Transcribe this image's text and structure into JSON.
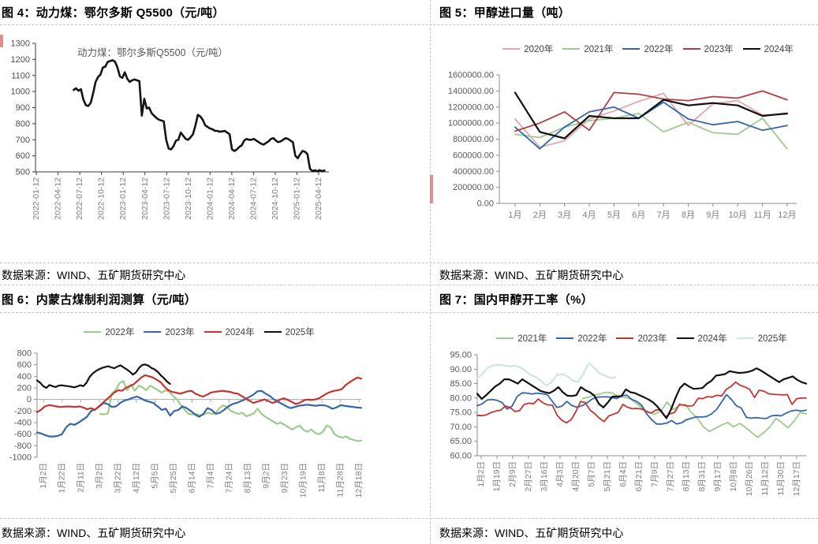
{
  "page": {
    "figure4_title": "图 4：动力煤：鄂尔多斯 Q5500（元/吨）",
    "figure5_title": "图 5：甲醇进口量（吨）",
    "figure6_title": "图 6：内蒙古煤制利润测算（元/吨）",
    "figure7_title": "图 7：国内甲醇开工率（%）",
    "source_text": "数据来源：WIND、五矿期货研究中心"
  },
  "colors": {
    "pink": "#E4A7AE",
    "green": "#9CCB8B",
    "blue": "#3566A9",
    "dark_red": "#B33E42",
    "bright_red": "#C53431",
    "black": "#111111",
    "pale_teal": "#CBE8DF",
    "axis_dark": "#3a3a3a",
    "axis_gray": "#8c8c8c",
    "tick_label_gray": "#7f7f7f"
  },
  "chart_data": [
    {
      "id": "fig4",
      "type": "line",
      "title": "图 4：动力煤：鄂尔多斯 Q5500（元/吨）",
      "inner_label": "动力煤：鄂尔多斯Q5500（元/吨）",
      "xlabel": "",
      "ylabel": "",
      "ylim": [
        500,
        1300
      ],
      "ytick_step": 100,
      "ytick_labels": [
        "1300",
        "1200",
        "1100",
        "1000",
        "900",
        "800",
        "700",
        "600",
        "500"
      ],
      "xtick_labels": [
        "2022-01-12",
        "2022-04-12",
        "2022-07-12",
        "2022-10-12",
        "2023-01-12",
        "2023-04-12",
        "2023-07-12",
        "2023-10-12",
        "2024-01-12",
        "2024-04-12",
        "2024-07-12",
        "2024-10-12",
        "2025-01-12",
        "2025-04-12"
      ],
      "legend": false,
      "series": [
        {
          "name": "动力煤：鄂尔多斯Q5500（元/吨）",
          "color": "#141414",
          "width": 2.6,
          "xstart": 0.13,
          "xend": 0.985,
          "values": [
            1010,
            1020,
            1005,
            1015,
            950,
            915,
            910,
            930,
            990,
            1060,
            1090,
            1105,
            1150,
            1155,
            1185,
            1190,
            1195,
            1185,
            1150,
            1095,
            1085,
            1120,
            1080,
            1060,
            1070,
            1075,
            1070,
            1065,
            850,
            955,
            895,
            900,
            865,
            850,
            835,
            825,
            820,
            815,
            700,
            645,
            640,
            660,
            695,
            700,
            745,
            725,
            705,
            700,
            715,
            735,
            790,
            855,
            845,
            825,
            790,
            780,
            770,
            765,
            755,
            755,
            750,
            752,
            755,
            745,
            735,
            640,
            630,
            640,
            655,
            665,
            695,
            705,
            700,
            700,
            705,
            695,
            685,
            675,
            670,
            680,
            690,
            705,
            710,
            695,
            685,
            690,
            700,
            710,
            705,
            695,
            685,
            600,
            585,
            610,
            630,
            625,
            610,
            520,
            505,
            510,
            504,
            511,
            505,
            509
          ]
        }
      ]
    },
    {
      "id": "fig5",
      "type": "line",
      "title": "图 5：甲醇进口量（吨）",
      "xlabel": "",
      "ylabel": "",
      "ylim": [
        0,
        1600000
      ],
      "ytick_step": 200000,
      "ytick_labels": [
        "1600000.00",
        "1400000.00",
        "1200000.00",
        "1000000.00",
        "800000.00",
        "600000.00",
        "400000.00",
        "200000.00",
        "0.00"
      ],
      "xtick_labels": [
        "1月",
        "2月",
        "3月",
        "4月",
        "5月",
        "6月",
        "7月",
        "8月",
        "9月",
        "10月",
        "11月",
        "12月"
      ],
      "legend": true,
      "legend_position": "top",
      "series": [
        {
          "name": "2020年",
          "color": "#E4A7AE",
          "xstart": 0.053,
          "xend": 0.968,
          "values": [
            1050000,
            700000,
            780000,
            1050000,
            1150000,
            1270000,
            1370000,
            970000,
            1240000,
            1280000,
            1100000,
            1110000
          ]
        },
        {
          "name": "2021年",
          "color": "#9CCB8B",
          "xstart": 0.053,
          "xend": 0.968,
          "values": [
            860000,
            820000,
            950000,
            1030000,
            1060000,
            1120000,
            890000,
            1010000,
            880000,
            860000,
            1060000,
            680000
          ]
        },
        {
          "name": "2022年",
          "color": "#3566A9",
          "xstart": 0.053,
          "xend": 0.968,
          "values": [
            950000,
            680000,
            950000,
            1140000,
            1200000,
            1060000,
            1260000,
            1050000,
            980000,
            1020000,
            910000,
            970000
          ]
        },
        {
          "name": "2023年",
          "color": "#B33E42",
          "xstart": 0.053,
          "xend": 0.968,
          "values": [
            900000,
            1000000,
            1140000,
            910000,
            1380000,
            1360000,
            1300000,
            1280000,
            1330000,
            1310000,
            1400000,
            1290000
          ]
        },
        {
          "name": "2024年",
          "color": "#111111",
          "width": 2.2,
          "xstart": 0.053,
          "xend": 0.968,
          "values": [
            1380000,
            890000,
            810000,
            1090000,
            1060000,
            1060000,
            1290000,
            1220000,
            1250000,
            1220000,
            1090000,
            1120000
          ]
        }
      ]
    },
    {
      "id": "fig6",
      "type": "line",
      "title": "图 6：内蒙古煤制利润测算（元/吨）",
      "xlabel": "",
      "ylabel": "",
      "ylim": [
        -1000,
        800
      ],
      "ytick_step": 200,
      "ytick_labels": [
        "800",
        "600",
        "400",
        "200",
        "0",
        "-200",
        "-400",
        "-600",
        "-800",
        "-1000"
      ],
      "xtick_labels": [
        "1月2日",
        "1月22日",
        "2月11日",
        "3月2日",
        "3月22日",
        "4月12日",
        "5月5日",
        "5月25日",
        "6月14日",
        "7月4日",
        "7月24日",
        "8月13日",
        "9月2日",
        "9月23日",
        "10月19日",
        "11月8日",
        "11月28日",
        "12月18日"
      ],
      "xaxis_at": 0,
      "legend": true,
      "legend_position": "top",
      "series": [
        {
          "name": "2022年",
          "color": "#9CCB8B",
          "xstart": 0.195,
          "xend": 1,
          "values": [
            -250,
            -260,
            -240,
            100,
            160,
            280,
            320,
            160,
            260,
            150,
            240,
            210,
            160,
            240,
            200,
            160,
            120,
            160,
            130,
            60,
            0,
            -100,
            -180,
            -250,
            -260,
            -250,
            -280,
            -260,
            -230,
            -250,
            -240,
            -150,
            -100,
            -130,
            -200,
            -230,
            -250,
            -230,
            -290,
            -270,
            -240,
            -160,
            -250,
            -300,
            -340,
            -380,
            -420,
            -400,
            -440,
            -480,
            -520,
            -480,
            -450,
            -530,
            -560,
            -520,
            -580,
            -600,
            -560,
            -450,
            -480,
            -600,
            -640,
            -660,
            -640,
            -680,
            -700,
            -720,
            -710
          ]
        },
        {
          "name": "2023年",
          "color": "#3566A9",
          "xstart": 0,
          "xend": 1,
          "values": [
            -570,
            -590,
            -620,
            -640,
            -640,
            -630,
            -600,
            -480,
            -420,
            -440,
            -400,
            -350,
            -300,
            -200,
            -170,
            -120,
            -60,
            -80,
            -130,
            -120,
            -60,
            -20,
            0,
            30,
            50,
            20,
            -20,
            -40,
            -60,
            -120,
            -180,
            -160,
            -280,
            -200,
            -180,
            -120,
            -150,
            -200,
            -260,
            -300,
            -250,
            -150,
            -180,
            -250,
            -230,
            -180,
            -120,
            -80,
            -60,
            -30,
            0,
            40,
            80,
            140,
            150,
            100,
            60,
            0,
            -40,
            -80,
            -120,
            -150,
            -130,
            -110,
            -100,
            -90,
            -100,
            -110,
            -100,
            -100,
            -120,
            -160,
            -140,
            -100,
            -110,
            -120,
            -130,
            -140,
            -145
          ]
        },
        {
          "name": "2024年",
          "color": "#C53431",
          "xstart": 0,
          "xend": 1,
          "values": [
            -220,
            -180,
            -120,
            -100,
            -105,
            -120,
            -130,
            -125,
            -120,
            -125,
            -130,
            -120,
            -140,
            -170,
            -150,
            -180,
            -120,
            -60,
            0,
            60,
            120,
            160,
            150,
            200,
            230,
            260,
            320,
            380,
            420,
            400,
            380,
            340,
            300,
            220,
            160,
            130,
            120,
            100,
            120,
            140,
            150,
            100,
            70,
            50,
            80,
            120,
            130,
            140,
            150,
            140,
            130,
            110,
            100,
            60,
            20,
            -20,
            -60,
            -40,
            -20,
            0,
            -30,
            -60,
            -40,
            0,
            20,
            -10,
            -40,
            -80,
            -60,
            -20,
            0,
            -10,
            0,
            20,
            60,
            100,
            130,
            150,
            160,
            180,
            250,
            300,
            340,
            380,
            360
          ]
        },
        {
          "name": "2025年",
          "color": "#111111",
          "xstart": 0,
          "xend": 0.41,
          "values": [
            330,
            290,
            230,
            200,
            250,
            230,
            215,
            240,
            245,
            235,
            230,
            220,
            210,
            225,
            245,
            230,
            290,
            390,
            450,
            490,
            520,
            545,
            560,
            575,
            555,
            540,
            570,
            590,
            555,
            520,
            480,
            430,
            470,
            545,
            595,
            605,
            585,
            545,
            520,
            480,
            420,
            370,
            310,
            270
          ]
        }
      ]
    },
    {
      "id": "fig7",
      "type": "line",
      "title": "图 7：国内甲醇开工率（%）",
      "xlabel": "",
      "ylabel": "",
      "ylim": [
        60,
        95
      ],
      "ytick_step": 5,
      "ytick_labels": [
        "95.00",
        "90.00",
        "85.00",
        "80.00",
        "75.00",
        "70.00",
        "65.00",
        "60.00"
      ],
      "xtick_labels": [
        "1月2日",
        "1月19日",
        "2月9日",
        "2月27日",
        "3月16日",
        "4月3日",
        "4月20日",
        "5月7日",
        "5月21日",
        "6月4日",
        "6月21日",
        "7月9日",
        "7月27日",
        "8月13日",
        "8月31日",
        "9月17日",
        "10月8日",
        "10月26日",
        "11月12日",
        "11月30日",
        "12月17日"
      ],
      "legend": true,
      "legend_position": "top",
      "series": [
        {
          "name": "2021年",
          "color": "#9CCB8B",
          "xstart": 0.32,
          "xend": 1,
          "values": [
            79.8,
            80.3,
            81,
            81.5,
            82,
            81.7,
            80.4,
            80.3,
            79.6,
            78,
            76.4,
            75,
            74.4,
            75.6,
            78.6,
            76,
            77.4,
            77.8,
            75,
            73,
            70,
            68.4,
            69.5,
            70.6,
            71.5,
            70,
            71.2,
            69.8,
            68,
            66.4,
            68,
            70,
            73,
            71.4,
            69.7,
            72,
            75,
            74.5
          ]
        },
        {
          "name": "2022年",
          "color": "#3566A9",
          "xstart": 0,
          "xend": 1,
          "values": [
            77.3,
            78,
            79.3,
            79.5,
            79.2,
            78.4,
            76.2,
            77.2,
            80.5,
            81.8,
            81.7,
            81.4,
            81.7,
            81.5,
            81.2,
            79,
            76.7,
            77.2,
            78.8,
            77.4,
            76.8,
            77.3,
            78.3,
            79.6,
            80.3,
            80.4,
            80.4,
            80.2,
            79.8,
            80.8,
            81,
            79.5,
            78.8,
            77.5,
            74.5,
            72.5,
            71,
            71,
            71.3,
            72.2,
            71,
            71.4,
            72.5,
            73,
            73.5,
            73.4,
            73.6,
            74.5,
            76,
            78.5,
            81.2,
            79.5,
            77.3,
            76.5,
            73.3,
            73,
            73.2,
            73,
            72.9,
            73.8,
            74,
            73.8,
            74.8,
            75.5,
            75.8,
            75.5,
            75.8
          ]
        },
        {
          "name": "2023年",
          "color": "#C53431",
          "xstart": 0,
          "xend": 1,
          "values": [
            74,
            73.9,
            74.2,
            75,
            75.5,
            75.8,
            77.2,
            76.7,
            75.3,
            75.6,
            77.8,
            78.2,
            78,
            79.7,
            78.3,
            77.6,
            77.5,
            74,
            72.3,
            71.4,
            72.5,
            75.3,
            78.8,
            78.4,
            75.8,
            74.6,
            73,
            71.8,
            73.8,
            74.4,
            75,
            77.8,
            76.8,
            76.3,
            76.4,
            76.2,
            75.3,
            74.8,
            75.8,
            76,
            73.5,
            74.5,
            75,
            77.8,
            77.5,
            77.2,
            77.4,
            79.9,
            79.8,
            80.5,
            80.3,
            81,
            80.7,
            83,
            84,
            85.5,
            84.4,
            83.8,
            83,
            80.2,
            82.7,
            82.4,
            81.5,
            81.3,
            81.2,
            81.1,
            81.2,
            77.8,
            79.8,
            80,
            80
          ]
        },
        {
          "name": "2024年",
          "color": "#111111",
          "width": 2.2,
          "xstart": 0,
          "xend": 1,
          "values": [
            81.5,
            79.7,
            81,
            82.5,
            84,
            85,
            86.5,
            86.5,
            85.8,
            85,
            86.5,
            85.5,
            84.5,
            83.5,
            82.5,
            82,
            81.7,
            82.5,
            83.8,
            82,
            80.8,
            80.7,
            81,
            83.8,
            82.7,
            82,
            80.8,
            78,
            76.7,
            78.5,
            80.5,
            80.5,
            80.7,
            83,
            82,
            81.7,
            81,
            80.3,
            79.5,
            78.5,
            77,
            75,
            73,
            76,
            80,
            83.5,
            85,
            84,
            83.2,
            83.3,
            83.5,
            85,
            86,
            87.8,
            88,
            88.3,
            89.3,
            89,
            88.7,
            88.8,
            89,
            89.5,
            90.3,
            89.5,
            88.5,
            87.5,
            86.5,
            85.5,
            86.5,
            87,
            87.5,
            86.3,
            85.5,
            85
          ]
        },
        {
          "name": "2025年",
          "color": "#CBE8DF",
          "width": 2.2,
          "xstart": 0,
          "xend": 0.42,
          "values": [
            86.8,
            88.5,
            90.5,
            91.3,
            91.5,
            91.3,
            91,
            91.2,
            90.7,
            89.5,
            88,
            87.3,
            86,
            84.3,
            85.5,
            88,
            88.3,
            87.5,
            86,
            85.5,
            88.5,
            92.2,
            90.5,
            88.5,
            87.8,
            87,
            87.2
          ]
        }
      ]
    }
  ]
}
